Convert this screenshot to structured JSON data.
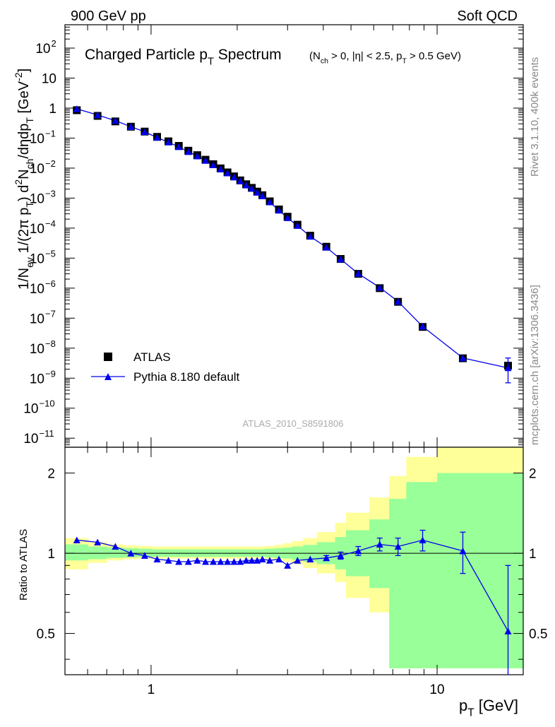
{
  "header": {
    "left": "900 GeV pp",
    "right": "Soft QCD"
  },
  "side_text": {
    "top": "Rivet 3.1.10,  400k events",
    "bottom": "mcplots.cern.ch [arXiv:1306.3436]"
  },
  "watermark": "ATLAS_2010_S8591806",
  "colors": {
    "data": "#000000",
    "mc": "#0000ee",
    "band_inner": "#99ff99",
    "band_outer": "#ffff99"
  },
  "chart_data": [
    {
      "type": "scatter",
      "title": "Charged Particle p_T Spectrum",
      "title_parts": {
        "main": "Charged Particle p",
        "main_sub": "T",
        "main_tail": " Spectrum"
      },
      "subtitle": "(N_ch > 0, |η| < 2.5, p_T > 0.5 GeV)",
      "subtitle_parts": [
        "(N",
        "ch",
        " > 0, |η| < 2.5, p",
        "T",
        " > 0.5 GeV)"
      ],
      "ylabel": "1/N_ev 1/(2π p_T) d²N_ch/dηdp_T [GeV⁻²]",
      "ylabel_parts": [
        "1/N",
        "ev",
        "  1/(2π p",
        "T",
        ")  d",
        "2",
        "N",
        "ch",
        "/dηdp",
        "T",
        " [GeV",
        "-2",
        "]"
      ],
      "xlabel": "p_T [GeV]",
      "log_x": true,
      "log_y": true,
      "xlim": [
        0.5,
        20
      ],
      "ylim": [
        5e-12,
        600
      ],
      "y_ticks": [
        {
          "v": 1e-11,
          "b": "10",
          "e": "−11"
        },
        {
          "v": 1e-10,
          "b": "10",
          "e": "−10"
        },
        {
          "v": 1e-09,
          "b": "10",
          "e": "−9"
        },
        {
          "v": 1e-08,
          "b": "10",
          "e": "−8"
        },
        {
          "v": 1e-07,
          "b": "10",
          "e": "−7"
        },
        {
          "v": 1e-06,
          "b": "10",
          "e": "−6"
        },
        {
          "v": 1e-05,
          "b": "10",
          "e": "−5"
        },
        {
          "v": 0.0001,
          "b": "10",
          "e": "−4"
        },
        {
          "v": 0.001,
          "b": "10",
          "e": "−3"
        },
        {
          "v": 0.01,
          "b": "10",
          "e": "−2"
        },
        {
          "v": 0.1,
          "b": "10",
          "e": "−1"
        },
        {
          "v": 1,
          "b": "1",
          "e": ""
        },
        {
          "v": 10,
          "b": "10",
          "e": ""
        },
        {
          "v": 100,
          "b": "10",
          "e": "2"
        }
      ],
      "legend": {
        "position": "lower-left",
        "entries": [
          "ATLAS",
          "Pythia 8.180 default"
        ]
      },
      "series": [
        {
          "name": "ATLAS",
          "marker": "square",
          "x": [
            0.55,
            0.65,
            0.75,
            0.85,
            0.95,
            1.05,
            1.15,
            1.25,
            1.35,
            1.45,
            1.55,
            1.65,
            1.75,
            1.85,
            1.95,
            2.05,
            2.15,
            2.25,
            2.35,
            2.45,
            2.6,
            2.8,
            3.0,
            3.25,
            3.6,
            4.1,
            4.6,
            5.3,
            6.3,
            7.3,
            8.9,
            12.3,
            17.7
          ],
          "y": [
            0.85,
            0.55,
            0.36,
            0.24,
            0.165,
            0.11,
            0.078,
            0.055,
            0.038,
            0.027,
            0.019,
            0.0135,
            0.0098,
            0.0072,
            0.0053,
            0.0039,
            0.0029,
            0.0022,
            0.00165,
            0.00125,
            0.00078,
            0.00042,
            0.00024,
            0.00013,
            5.6e-05,
            2.4e-05,
            9.4e-06,
            3e-06,
            1e-06,
            3.5e-07,
            5.1e-08,
            4.6e-09,
            2.6e-09
          ]
        },
        {
          "name": "Pythia 8.180 default",
          "marker": "triangle",
          "x": [
            0.55,
            0.65,
            0.75,
            0.85,
            0.95,
            1.05,
            1.15,
            1.25,
            1.35,
            1.45,
            1.55,
            1.65,
            1.75,
            1.85,
            1.95,
            2.05,
            2.15,
            2.25,
            2.35,
            2.45,
            2.6,
            2.8,
            3.0,
            3.25,
            3.6,
            4.1,
            4.6,
            5.3,
            6.3,
            7.3,
            8.9,
            12.3,
            17.7
          ],
          "y": [
            0.94,
            0.59,
            0.38,
            0.24,
            0.162,
            0.105,
            0.073,
            0.051,
            0.035,
            0.025,
            0.0178,
            0.0127,
            0.0092,
            0.0068,
            0.005,
            0.0037,
            0.0027,
            0.0021,
            0.00155,
            0.00117,
            0.00074,
            0.00039,
            0.00022,
            0.000121,
            5.3e-05,
            2.3e-05,
            9.2e-06,
            3.05e-06,
            1.05e-06,
            3.6e-07,
            5.3e-08,
            4.7e-09,
            2.2e-09
          ],
          "y_err_low": [
            0,
            0,
            0,
            0,
            0,
            0,
            0,
            0,
            0,
            0,
            0,
            0,
            0,
            0,
            0,
            0,
            0,
            0,
            0,
            0,
            0,
            0,
            0,
            0,
            0,
            0,
            0,
            0,
            0,
            0,
            0,
            0,
            1.5e-09
          ],
          "y_err_high": [
            0,
            0,
            0,
            0,
            0,
            0,
            0,
            0,
            0,
            0,
            0,
            0,
            0,
            0,
            0,
            0,
            0,
            0,
            0,
            0,
            0,
            0,
            0,
            0,
            0,
            0,
            0,
            0,
            0,
            0,
            0,
            0,
            2.5e-09
          ]
        }
      ]
    },
    {
      "type": "line",
      "ylabel": "Ratio to ATLAS",
      "xlabel": "p_T [GeV]",
      "log_x": true,
      "log_y": true,
      "xlim": [
        0.5,
        20
      ],
      "ylim": [
        0.35,
        2.5
      ],
      "y_ticks": [
        0.5,
        1,
        2
      ],
      "y_tick_labels": [
        "0.5",
        "1",
        "2"
      ],
      "x_ticks": [
        1,
        10
      ],
      "x_tick_labels": [
        "1",
        "10"
      ],
      "reference_line": 1,
      "bins": {
        "edges": [
          0.5,
          0.6,
          0.7,
          0.8,
          0.9,
          1.0,
          1.1,
          1.2,
          1.3,
          1.4,
          1.5,
          1.6,
          1.7,
          1.8,
          1.9,
          2.0,
          2.1,
          2.2,
          2.3,
          2.4,
          2.5,
          2.7,
          2.9,
          3.1,
          3.4,
          3.8,
          4.4,
          4.8,
          5.8,
          6.8,
          7.8,
          10.0,
          14.6,
          20.8
        ],
        "inner_low": [
          0.94,
          0.95,
          0.96,
          0.965,
          0.97,
          0.97,
          0.97,
          0.97,
          0.97,
          0.97,
          0.97,
          0.97,
          0.97,
          0.97,
          0.97,
          0.97,
          0.97,
          0.97,
          0.97,
          0.97,
          0.965,
          0.96,
          0.955,
          0.945,
          0.93,
          0.91,
          0.87,
          0.82,
          0.74,
          0.37,
          0.37,
          0.37,
          0.37
        ],
        "inner_high": [
          1.08,
          1.06,
          1.05,
          1.045,
          1.04,
          1.035,
          1.035,
          1.035,
          1.035,
          1.035,
          1.035,
          1.035,
          1.035,
          1.035,
          1.035,
          1.035,
          1.035,
          1.035,
          1.035,
          1.035,
          1.04,
          1.045,
          1.05,
          1.06,
          1.075,
          1.1,
          1.15,
          1.22,
          1.34,
          1.6,
          1.85,
          2.0,
          2.0
        ],
        "outer_low": [
          0.87,
          0.92,
          0.94,
          0.95,
          0.955,
          0.955,
          0.955,
          0.955,
          0.955,
          0.955,
          0.955,
          0.955,
          0.955,
          0.955,
          0.955,
          0.955,
          0.955,
          0.955,
          0.955,
          0.955,
          0.95,
          0.94,
          0.93,
          0.91,
          0.88,
          0.84,
          0.78,
          0.68,
          0.6,
          0.37,
          0.37,
          0.37,
          0.37
        ],
        "outer_high": [
          1.14,
          1.1,
          1.08,
          1.07,
          1.065,
          1.06,
          1.06,
          1.06,
          1.06,
          1.06,
          1.06,
          1.06,
          1.06,
          1.06,
          1.06,
          1.06,
          1.06,
          1.06,
          1.06,
          1.06,
          1.065,
          1.075,
          1.09,
          1.11,
          1.14,
          1.2,
          1.3,
          1.42,
          1.62,
          1.95,
          2.3,
          2.5,
          2.5
        ]
      },
      "series": [
        {
          "name": "Pythia 8.180 default",
          "x": [
            0.55,
            0.65,
            0.75,
            0.85,
            0.95,
            1.05,
            1.15,
            1.25,
            1.35,
            1.45,
            1.55,
            1.65,
            1.75,
            1.85,
            1.95,
            2.05,
            2.15,
            2.25,
            2.35,
            2.45,
            2.6,
            2.8,
            3.0,
            3.25,
            3.6,
            4.1,
            4.6,
            5.3,
            6.3,
            7.3,
            8.9,
            12.3,
            17.7
          ],
          "y": [
            1.12,
            1.1,
            1.06,
            1.0,
            0.98,
            0.95,
            0.94,
            0.93,
            0.93,
            0.94,
            0.93,
            0.93,
            0.93,
            0.93,
            0.93,
            0.93,
            0.94,
            0.94,
            0.94,
            0.95,
            0.94,
            0.95,
            0.9,
            0.94,
            0.95,
            0.96,
            0.98,
            1.02,
            1.08,
            1.06,
            1.12,
            1.02,
            0.51
          ],
          "y_err_low": [
            0,
            0,
            0,
            0,
            0,
            0,
            0,
            0,
            0,
            0,
            0,
            0,
            0,
            0,
            0,
            0,
            0,
            0,
            0,
            0,
            0,
            0,
            0,
            0,
            0,
            0.02,
            0.03,
            0.04,
            0.06,
            0.08,
            0.1,
            0.18,
            0.2
          ],
          "y_err_high": [
            0,
            0,
            0,
            0,
            0,
            0,
            0,
            0,
            0,
            0,
            0,
            0,
            0,
            0,
            0,
            0,
            0,
            0,
            0,
            0,
            0,
            0,
            0,
            0,
            0,
            0.02,
            0.03,
            0.04,
            0.06,
            0.08,
            0.1,
            0.18,
            0.39
          ]
        }
      ]
    }
  ]
}
